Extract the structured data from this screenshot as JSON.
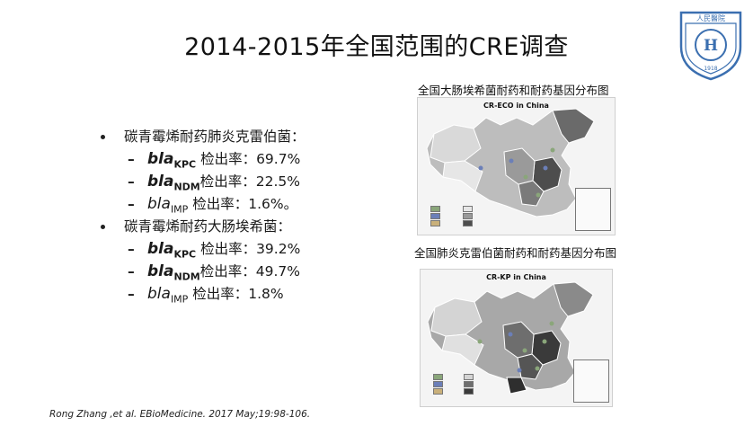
{
  "slide": {
    "title": "2014-2015年全国范围的CRE调查",
    "logo_text": "人民醫院",
    "logo_year": "1918"
  },
  "kp": {
    "heading": "碳青霉烯耐药肺炎克雷伯菌：",
    "items": [
      {
        "gene": "bla",
        "sub": "KPC",
        "label": " 检出率：69.7%"
      },
      {
        "gene": "bla",
        "sub": "NDM",
        "label": "检出率：22.5%"
      },
      {
        "gene": "bla",
        "sub": "IMP",
        "label": " 检出率：1.6%。"
      }
    ]
  },
  "eco": {
    "heading": "碳青霉烯耐药大肠埃希菌：",
    "items": [
      {
        "gene": "bla",
        "sub": "KPC",
        "label": " 检出率：39.2%"
      },
      {
        "gene": "bla",
        "sub": "NDM",
        "label": "检出率：49.7%"
      },
      {
        "gene": "bla",
        "sub": "IMP",
        "label": "  检出率：1.8%"
      }
    ]
  },
  "maps": {
    "top_caption": "全国大肠埃希菌耐药和耐药基因分布图",
    "top_label": "CR-ECO in China",
    "bottom_caption": "全国肺炎克雷伯菌耐药和耐药基因分布图",
    "bottom_label": "CR-KP in China"
  },
  "citation": "Rong Zhang ,et al. EBioMedicine. 2017 May;19:98-106."
}
